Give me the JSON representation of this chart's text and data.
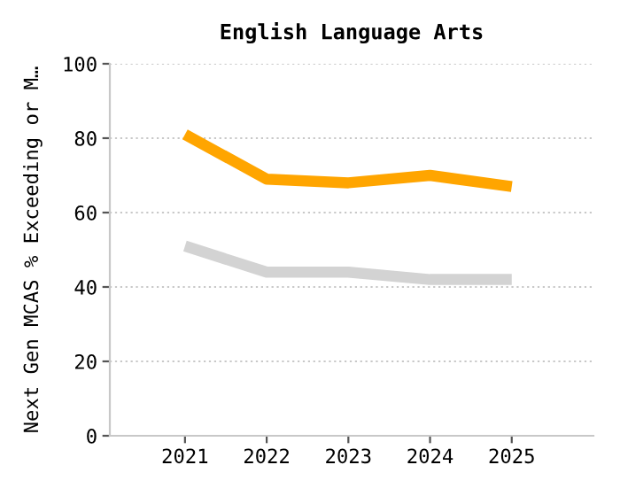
{
  "chart_data": {
    "type": "line",
    "title": "English Language Arts",
    "ylabel": "Next Gen MCAS % Exceeding or M…",
    "categories": [
      "2021",
      "2022",
      "2023",
      "2024",
      "2025"
    ],
    "series": [
      {
        "color": "#ffa500",
        "values": [
          81,
          69,
          68,
          70,
          67
        ]
      },
      {
        "color": "#d3d3d3",
        "values": [
          51,
          44,
          44,
          42,
          42
        ]
      }
    ],
    "ylim": [
      0,
      100
    ],
    "yticks": [
      0,
      20,
      40,
      60,
      80,
      100
    ],
    "grid": "y",
    "legend": false,
    "marker": "none",
    "line_style": "solid"
  }
}
